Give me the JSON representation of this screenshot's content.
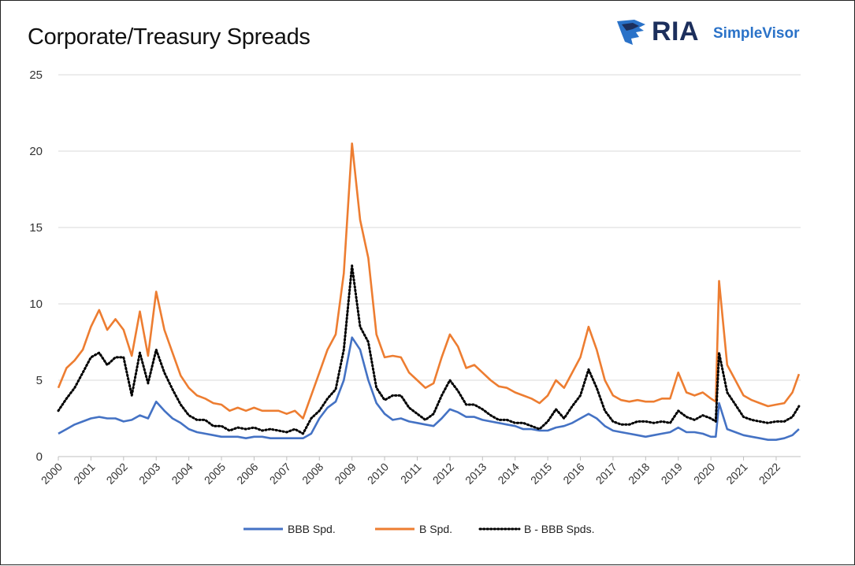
{
  "chart_data": {
    "type": "line",
    "title": "Corporate/Treasury Spreads",
    "xlabel": "",
    "ylabel": "",
    "ylim": [
      0,
      25
    ],
    "yticks": [
      0,
      5,
      10,
      15,
      20,
      25
    ],
    "xlim": [
      2000,
      2022.75
    ],
    "xticks": [
      "2000",
      "2001",
      "2002",
      "2003",
      "2004",
      "2005",
      "2006",
      "2007",
      "2008",
      "2009",
      "2010",
      "2011",
      "2012",
      "2013",
      "2014",
      "2015",
      "2016",
      "2017",
      "2018",
      "2019",
      "2020",
      "2021",
      "2022"
    ],
    "grid": "horizontal",
    "legend_position": "bottom",
    "x": [
      2000.0,
      2000.25,
      2000.5,
      2000.75,
      2001.0,
      2001.25,
      2001.5,
      2001.75,
      2002.0,
      2002.25,
      2002.5,
      2002.75,
      2003.0,
      2003.25,
      2003.5,
      2003.75,
      2004.0,
      2004.25,
      2004.5,
      2004.75,
      2005.0,
      2005.25,
      2005.5,
      2005.75,
      2006.0,
      2006.25,
      2006.5,
      2006.75,
      2007.0,
      2007.25,
      2007.5,
      2007.75,
      2008.0,
      2008.25,
      2008.5,
      2008.75,
      2009.0,
      2009.25,
      2009.5,
      2009.75,
      2010.0,
      2010.25,
      2010.5,
      2010.75,
      2011.0,
      2011.25,
      2011.5,
      2011.75,
      2012.0,
      2012.25,
      2012.5,
      2012.75,
      2013.0,
      2013.25,
      2013.5,
      2013.75,
      2014.0,
      2014.25,
      2014.5,
      2014.75,
      2015.0,
      2015.25,
      2015.5,
      2015.75,
      2016.0,
      2016.25,
      2016.5,
      2016.75,
      2017.0,
      2017.25,
      2017.5,
      2017.75,
      2018.0,
      2018.25,
      2018.5,
      2018.75,
      2019.0,
      2019.25,
      2019.5,
      2019.75,
      2020.0,
      2020.15,
      2020.25,
      2020.5,
      2020.75,
      2021.0,
      2021.25,
      2021.5,
      2021.75,
      2022.0,
      2022.25,
      2022.5,
      2022.7
    ],
    "series": [
      {
        "name": "BBB Spd.",
        "color": "#4472c4",
        "style": "solid",
        "values": [
          1.5,
          1.8,
          2.1,
          2.3,
          2.5,
          2.6,
          2.5,
          2.5,
          2.3,
          2.4,
          2.7,
          2.5,
          3.6,
          3.0,
          2.5,
          2.2,
          1.8,
          1.6,
          1.5,
          1.4,
          1.3,
          1.3,
          1.3,
          1.2,
          1.3,
          1.3,
          1.2,
          1.2,
          1.2,
          1.2,
          1.2,
          1.5,
          2.5,
          3.2,
          3.6,
          5.0,
          7.8,
          7.0,
          5.0,
          3.5,
          2.8,
          2.4,
          2.5,
          2.3,
          2.2,
          2.1,
          2.0,
          2.5,
          3.1,
          2.9,
          2.6,
          2.6,
          2.4,
          2.3,
          2.2,
          2.1,
          2.0,
          1.8,
          1.8,
          1.7,
          1.7,
          1.9,
          2.0,
          2.2,
          2.5,
          2.8,
          2.5,
          2.0,
          1.7,
          1.6,
          1.5,
          1.4,
          1.3,
          1.4,
          1.5,
          1.6,
          1.9,
          1.6,
          1.6,
          1.5,
          1.3,
          1.3,
          3.5,
          1.8,
          1.6,
          1.4,
          1.3,
          1.2,
          1.1,
          1.1,
          1.2,
          1.4,
          1.8
        ]
      },
      {
        "name": "B Spd.",
        "color": "#ed7d31",
        "style": "solid",
        "values": [
          4.5,
          5.8,
          6.3,
          7.0,
          8.5,
          9.6,
          8.3,
          9.0,
          8.3,
          6.6,
          9.5,
          6.6,
          10.8,
          8.3,
          6.8,
          5.3,
          4.5,
          4.0,
          3.8,
          3.5,
          3.4,
          3.0,
          3.2,
          3.0,
          3.2,
          3.0,
          3.0,
          3.0,
          2.8,
          3.0,
          2.5,
          4.0,
          5.5,
          7.0,
          8.0,
          12.0,
          20.5,
          15.5,
          13.0,
          8.0,
          6.5,
          6.6,
          6.5,
          5.5,
          5.0,
          4.5,
          4.8,
          6.5,
          8.0,
          7.2,
          5.8,
          6.0,
          5.5,
          5.0,
          4.6,
          4.5,
          4.2,
          4.0,
          3.8,
          3.5,
          4.0,
          5.0,
          4.5,
          5.5,
          6.5,
          8.5,
          7.0,
          5.0,
          4.0,
          3.7,
          3.6,
          3.7,
          3.6,
          3.6,
          3.8,
          3.8,
          5.5,
          4.2,
          4.0,
          4.2,
          3.8,
          3.6,
          11.5,
          6.0,
          5.0,
          4.0,
          3.7,
          3.5,
          3.3,
          3.4,
          3.5,
          4.2,
          5.4
        ]
      },
      {
        "name": "B - BBB Spds.",
        "color": "#000000",
        "style": "dotted",
        "values": [
          3.0,
          3.8,
          4.5,
          5.5,
          6.5,
          6.8,
          6.0,
          6.5,
          6.5,
          4.0,
          6.8,
          4.8,
          7.0,
          5.5,
          4.4,
          3.4,
          2.7,
          2.4,
          2.4,
          2.0,
          2.0,
          1.7,
          1.9,
          1.8,
          1.9,
          1.7,
          1.8,
          1.7,
          1.6,
          1.8,
          1.5,
          2.5,
          3.0,
          3.8,
          4.4,
          7.0,
          12.5,
          8.5,
          7.5,
          4.5,
          3.7,
          4.0,
          4.0,
          3.2,
          2.8,
          2.4,
          2.8,
          4.0,
          5.0,
          4.3,
          3.4,
          3.4,
          3.1,
          2.7,
          2.4,
          2.4,
          2.2,
          2.2,
          2.0,
          1.8,
          2.3,
          3.1,
          2.5,
          3.3,
          4.0,
          5.7,
          4.5,
          3.0,
          2.3,
          2.1,
          2.1,
          2.3,
          2.3,
          2.2,
          2.3,
          2.2,
          3.0,
          2.6,
          2.4,
          2.7,
          2.5,
          2.3,
          6.8,
          4.2,
          3.4,
          2.6,
          2.4,
          2.3,
          2.2,
          2.3,
          2.3,
          2.6,
          3.3
        ]
      }
    ]
  },
  "logo": {
    "ria": "RIA",
    "simplevisor": "SimpleVisor",
    "mark_color": "#2a72c8",
    "text_color": "#1c2f5c"
  }
}
